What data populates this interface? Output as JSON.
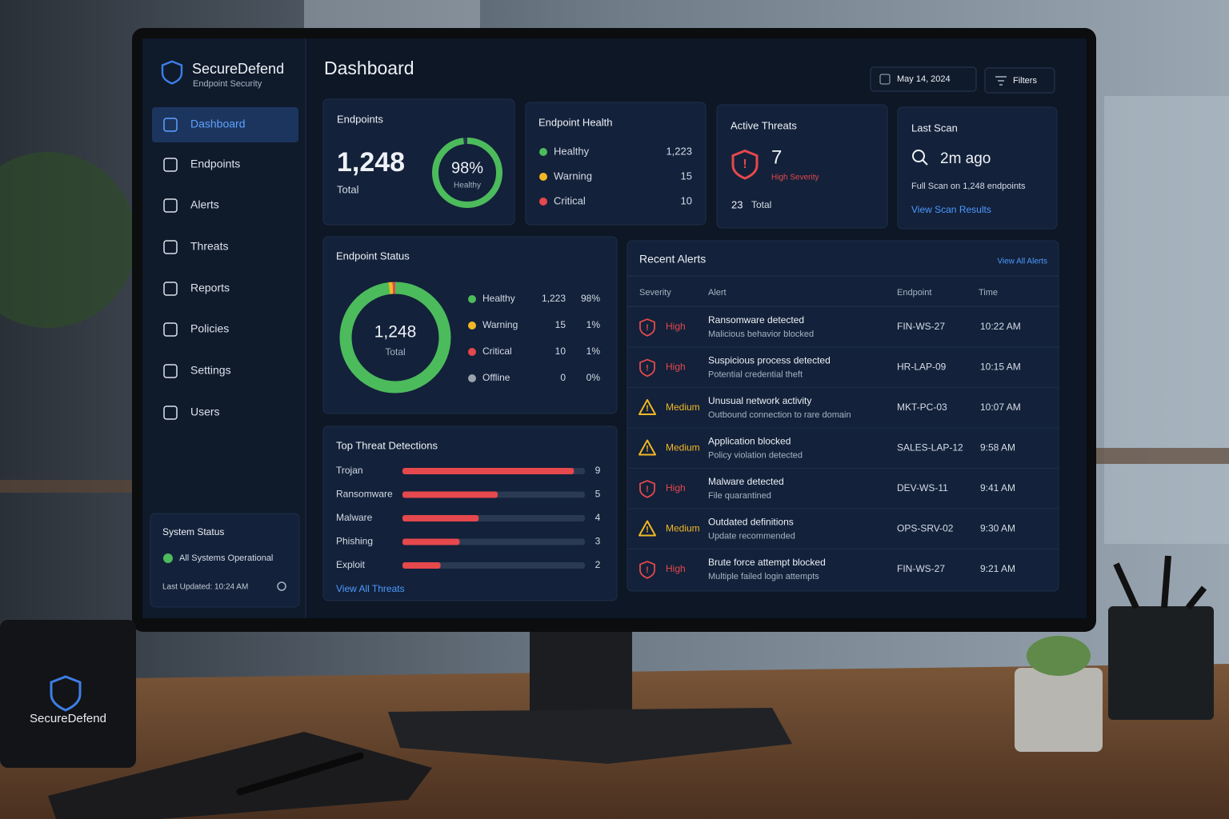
{
  "brand": {
    "name": "SecureDefend",
    "tagline": "Endpoint Security"
  },
  "nav": [
    "Dashboard",
    "Endpoints",
    "Alerts",
    "Threats",
    "Reports",
    "Policies",
    "Settings",
    "Users"
  ],
  "system_status": {
    "title": "System Status",
    "status": "All Systems Operational",
    "updated": "Last Updated: 10:24 AM"
  },
  "header": {
    "title": "Dashboard",
    "date": "May 14, 2024",
    "filters": "Filters"
  },
  "endpoints_card": {
    "title": "Endpoints",
    "total": "1,248",
    "total_label": "Total",
    "healthy_percent": 98,
    "healthy_percent_label": "98%",
    "healthy_label": "Healthy"
  },
  "health_card": {
    "title": "Endpoint Health",
    "rows": [
      {
        "name": "Healthy",
        "value": "1,223",
        "color": "#4cbb5c"
      },
      {
        "name": "Warning",
        "value": "15",
        "color": "#f2b824"
      },
      {
        "name": "Critical",
        "value": "10",
        "color": "#e5484d"
      }
    ]
  },
  "threats_card": {
    "title": "Active Threats",
    "count": "7",
    "severity": "High Severity",
    "total": "23",
    "total_label": "Total"
  },
  "scan_card": {
    "title": "Last Scan",
    "ago": "2m ago",
    "detail": "Full Scan on 1,248 endpoints",
    "link": "View Scan Results"
  },
  "endpoint_status": {
    "title": "Endpoint Status",
    "center_value": "1,248",
    "center_label": "Total",
    "categories": [
      "Healthy",
      "Warning",
      "Critical",
      "Offline"
    ],
    "values": [
      1223,
      15,
      10,
      0
    ],
    "value_labels": [
      "1,223",
      "15",
      "10",
      "0"
    ],
    "percent_labels": [
      "98%",
      "1%",
      "1%",
      "0%"
    ],
    "colors": [
      "#4cbb5c",
      "#f2b824",
      "#e5484d",
      "#9aa3ad"
    ]
  },
  "top_threats": {
    "title": "Top Threat Detections",
    "categories": [
      "Trojan",
      "Ransomware",
      "Malware",
      "Phishing",
      "Exploit"
    ],
    "values": [
      9,
      5,
      4,
      3,
      2
    ],
    "color": "#e5484d",
    "link": "View All Threats"
  },
  "alerts": {
    "title": "Recent Alerts",
    "link": "View All Alerts",
    "columns": [
      "Severity",
      "Alert",
      "Endpoint",
      "Time"
    ],
    "severity_styles": {
      "High": {
        "color": "#e5484d",
        "icon": "shield"
      },
      "Medium": {
        "color": "#f2b824",
        "icon": "warning"
      }
    },
    "rows": [
      {
        "severity": "High",
        "title": "Ransomware detected",
        "detail": "Malicious behavior blocked",
        "endpoint": "FIN-WS-27",
        "time": "10:22 AM"
      },
      {
        "severity": "High",
        "title": "Suspicious process detected",
        "detail": "Potential credential theft",
        "endpoint": "HR-LAP-09",
        "time": "10:15 AM"
      },
      {
        "severity": "Medium",
        "title": "Unusual network activity",
        "detail": "Outbound connection to rare domain",
        "endpoint": "MKT-PC-03",
        "time": "10:07 AM"
      },
      {
        "severity": "Medium",
        "title": "Application blocked",
        "detail": "Policy violation detected",
        "endpoint": "SALES-LAP-12",
        "time": "9:58 AM"
      },
      {
        "severity": "High",
        "title": "Malware detected",
        "detail": "File quarantined",
        "endpoint": "DEV-WS-11",
        "time": "9:41 AM"
      },
      {
        "severity": "Medium",
        "title": "Outdated definitions",
        "detail": "Update recommended",
        "endpoint": "OPS-SRV-02",
        "time": "9:30 AM"
      },
      {
        "severity": "High",
        "title": "Brute force attempt blocked",
        "detail": "Multiple failed login attempts",
        "endpoint": "FIN-WS-27",
        "time": "9:21 AM"
      }
    ]
  },
  "mug": {
    "brand": "SecureDefend"
  }
}
